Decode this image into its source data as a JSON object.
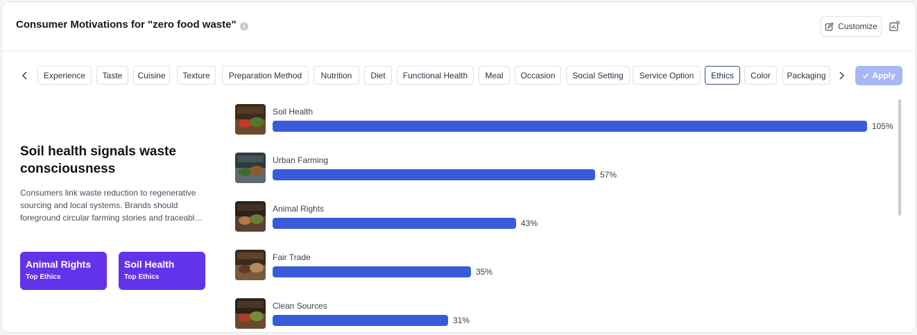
{
  "header": {
    "title": "Consumer Motivations for \"zero food waste\"",
    "customize_label": "Customize"
  },
  "tabs": [
    {
      "label": "Experience"
    },
    {
      "label": "Taste"
    },
    {
      "label": "Cuisine"
    },
    {
      "label": "Texture"
    },
    {
      "label": "Preparation Method"
    },
    {
      "label": "Nutrition"
    },
    {
      "label": "Diet"
    },
    {
      "label": "Functional Health"
    },
    {
      "label": "Meal"
    },
    {
      "label": "Occasion"
    },
    {
      "label": "Social Setting"
    },
    {
      "label": "Service Option"
    },
    {
      "label": "Ethics",
      "active": true
    },
    {
      "label": "Color"
    },
    {
      "label": "Packaging"
    }
  ],
  "apply_label": "Apply",
  "insight": {
    "title": "Soil health signals waste consciousness",
    "body": "Consumers link waste reduction to regenerative sourcing and local systems. Brands should foreground circular farming stories and traceabl…"
  },
  "top_cards": [
    {
      "name": "Animal Rights",
      "sub": "Top Ethics"
    },
    {
      "name": "Soil Health",
      "sub": "Top Ethics"
    }
  ],
  "chart_data": {
    "type": "bar",
    "categories": [
      "Soil Health",
      "Urban Farming",
      "Animal Rights",
      "Fair Trade",
      "Clean Sources"
    ],
    "values": [
      105,
      57,
      43,
      35,
      31
    ],
    "value_labels": [
      "105%",
      "57%",
      "43%",
      "35%",
      "31%"
    ],
    "bar_color": "#3a5bd9"
  },
  "colors": {
    "accent": "#6333ea",
    "apply_disabled": "#a9b7f4"
  }
}
